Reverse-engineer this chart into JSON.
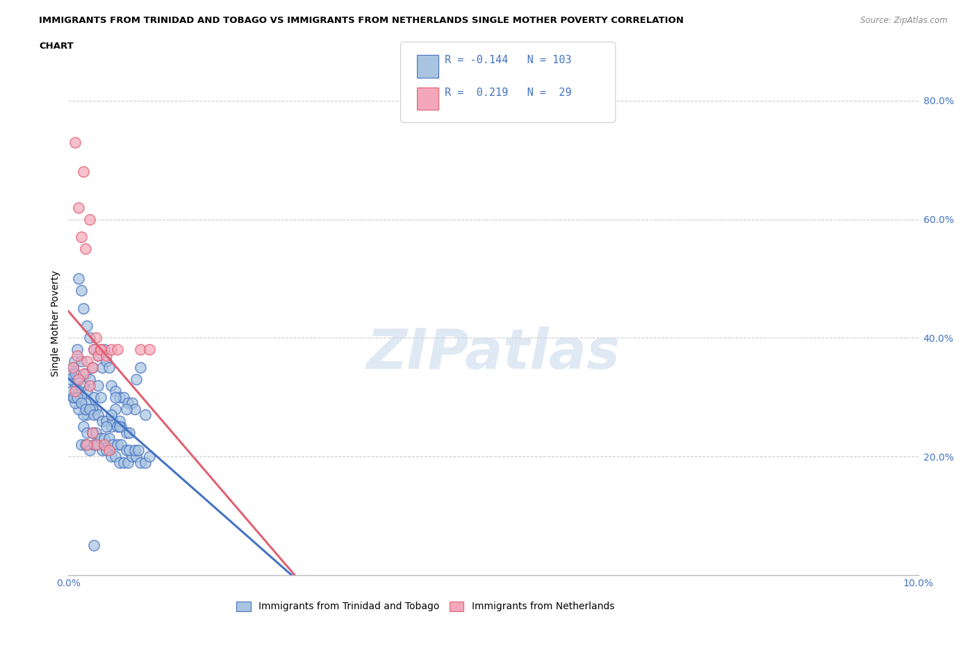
{
  "title_line1": "IMMIGRANTS FROM TRINIDAD AND TOBAGO VS IMMIGRANTS FROM NETHERLANDS SINGLE MOTHER POVERTY CORRELATION",
  "title_line2": "CHART",
  "source": "Source: ZipAtlas.com",
  "ylabel": "Single Mother Poverty",
  "xlim": [
    0.0,
    0.1
  ],
  "ylim": [
    0.0,
    0.85
  ],
  "r_blue": -0.144,
  "n_blue": 103,
  "r_pink": 0.219,
  "n_pink": 29,
  "blue_color": "#a8c4e0",
  "pink_color": "#f4a7b9",
  "line_blue": "#4472C4",
  "line_pink": "#E06070",
  "blue_scatter": [
    [
      0.0008,
      0.32
    ],
    [
      0.0012,
      0.5
    ],
    [
      0.0015,
      0.48
    ],
    [
      0.0018,
      0.45
    ],
    [
      0.0005,
      0.35
    ],
    [
      0.001,
      0.38
    ],
    [
      0.0022,
      0.42
    ],
    [
      0.0003,
      0.34
    ],
    [
      0.0025,
      0.4
    ],
    [
      0.0007,
      0.36
    ],
    [
      0.003,
      0.38
    ],
    [
      0.0002,
      0.33
    ],
    [
      0.0015,
      0.36
    ],
    [
      0.002,
      0.34
    ],
    [
      0.0028,
      0.35
    ],
    [
      0.001,
      0.33
    ],
    [
      0.0018,
      0.32
    ],
    [
      0.0022,
      0.31
    ],
    [
      0.0035,
      0.37
    ],
    [
      0.004,
      0.35
    ],
    [
      0.0008,
      0.34
    ],
    [
      0.0012,
      0.31
    ],
    [
      0.0025,
      0.33
    ],
    [
      0.003,
      0.3
    ],
    [
      0.0005,
      0.3
    ],
    [
      0.0015,
      0.3
    ],
    [
      0.002,
      0.29
    ],
    [
      0.0035,
      0.32
    ],
    [
      0.0042,
      0.38
    ],
    [
      0.0045,
      0.36
    ],
    [
      0.0048,
      0.35
    ],
    [
      0.005,
      0.32
    ],
    [
      0.0038,
      0.3
    ],
    [
      0.0032,
      0.28
    ],
    [
      0.0028,
      0.28
    ],
    [
      0.0022,
      0.27
    ],
    [
      0.0018,
      0.27
    ],
    [
      0.0012,
      0.28
    ],
    [
      0.0008,
      0.29
    ],
    [
      0.0004,
      0.31
    ],
    [
      0.0006,
      0.3
    ],
    [
      0.001,
      0.3
    ],
    [
      0.0015,
      0.29
    ],
    [
      0.002,
      0.28
    ],
    [
      0.0025,
      0.28
    ],
    [
      0.003,
      0.27
    ],
    [
      0.0035,
      0.27
    ],
    [
      0.004,
      0.26
    ],
    [
      0.0045,
      0.26
    ],
    [
      0.005,
      0.25
    ],
    [
      0.0055,
      0.31
    ],
    [
      0.006,
      0.3
    ],
    [
      0.0065,
      0.3
    ],
    [
      0.007,
      0.29
    ],
    [
      0.0075,
      0.29
    ],
    [
      0.0052,
      0.26
    ],
    [
      0.0058,
      0.25
    ],
    [
      0.0062,
      0.25
    ],
    [
      0.0068,
      0.24
    ],
    [
      0.0072,
      0.24
    ],
    [
      0.0015,
      0.22
    ],
    [
      0.002,
      0.22
    ],
    [
      0.0025,
      0.21
    ],
    [
      0.003,
      0.22
    ],
    [
      0.0035,
      0.22
    ],
    [
      0.004,
      0.21
    ],
    [
      0.0045,
      0.21
    ],
    [
      0.005,
      0.2
    ],
    [
      0.0055,
      0.2
    ],
    [
      0.006,
      0.19
    ],
    [
      0.0065,
      0.19
    ],
    [
      0.007,
      0.19
    ],
    [
      0.0075,
      0.2
    ],
    [
      0.008,
      0.2
    ],
    [
      0.0085,
      0.19
    ],
    [
      0.009,
      0.19
    ],
    [
      0.0018,
      0.25
    ],
    [
      0.0022,
      0.24
    ],
    [
      0.0028,
      0.24
    ],
    [
      0.0032,
      0.24
    ],
    [
      0.0038,
      0.23
    ],
    [
      0.0042,
      0.23
    ],
    [
      0.0048,
      0.23
    ],
    [
      0.0052,
      0.22
    ],
    [
      0.0058,
      0.22
    ],
    [
      0.0062,
      0.22
    ],
    [
      0.0068,
      0.21
    ],
    [
      0.0072,
      0.21
    ],
    [
      0.0078,
      0.21
    ],
    [
      0.0082,
      0.21
    ],
    [
      0.0055,
      0.28
    ],
    [
      0.006,
      0.26
    ],
    [
      0.008,
      0.33
    ],
    [
      0.0085,
      0.35
    ],
    [
      0.0078,
      0.28
    ],
    [
      0.009,
      0.27
    ],
    [
      0.003,
      0.05
    ],
    [
      0.006,
      0.25
    ],
    [
      0.0095,
      0.2
    ],
    [
      0.0068,
      0.28
    ],
    [
      0.005,
      0.27
    ],
    [
      0.0045,
      0.25
    ],
    [
      0.0055,
      0.3
    ]
  ],
  "pink_scatter": [
    [
      0.0008,
      0.73
    ],
    [
      0.0018,
      0.68
    ],
    [
      0.0012,
      0.62
    ],
    [
      0.0025,
      0.6
    ],
    [
      0.0015,
      0.57
    ],
    [
      0.003,
      0.38
    ],
    [
      0.002,
      0.55
    ],
    [
      0.001,
      0.37
    ],
    [
      0.0005,
      0.35
    ],
    [
      0.0022,
      0.36
    ],
    [
      0.0028,
      0.35
    ],
    [
      0.0032,
      0.4
    ],
    [
      0.0038,
      0.38
    ],
    [
      0.0018,
      0.34
    ],
    [
      0.0012,
      0.33
    ],
    [
      0.0008,
      0.31
    ],
    [
      0.0025,
      0.32
    ],
    [
      0.0035,
      0.37
    ],
    [
      0.0028,
      0.24
    ],
    [
      0.0032,
      0.22
    ],
    [
      0.0042,
      0.22
    ],
    [
      0.0048,
      0.21
    ],
    [
      0.0038,
      0.38
    ],
    [
      0.0045,
      0.37
    ],
    [
      0.0022,
      0.22
    ],
    [
      0.005,
      0.38
    ],
    [
      0.0058,
      0.38
    ],
    [
      0.0085,
      0.38
    ],
    [
      0.0095,
      0.38
    ]
  ]
}
